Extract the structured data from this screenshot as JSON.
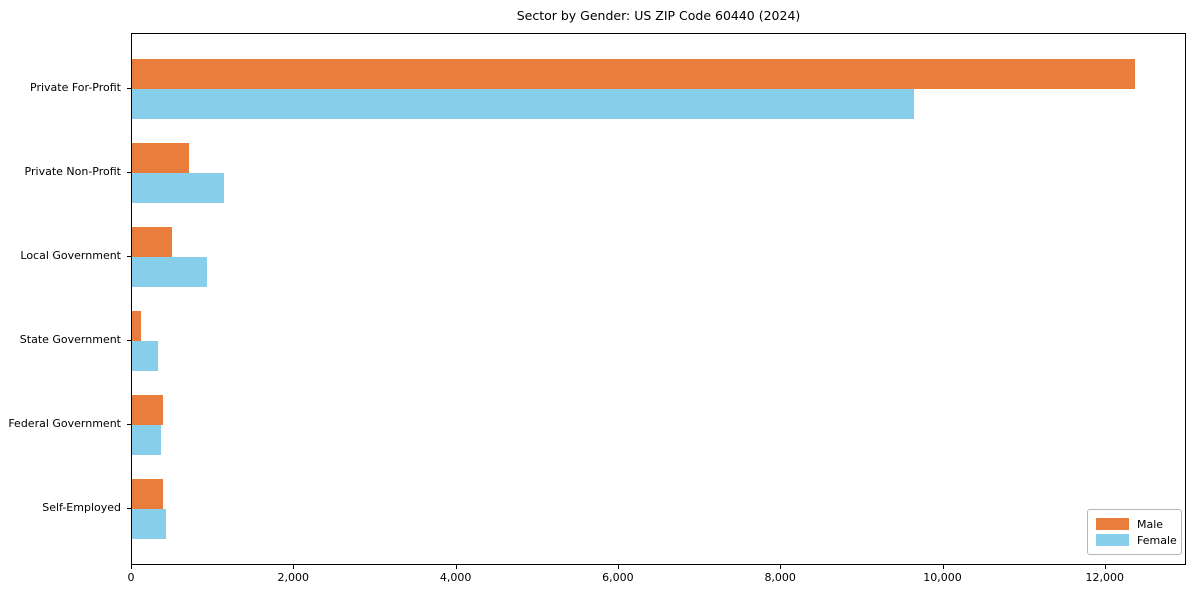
{
  "chart_data": {
    "type": "bar",
    "orientation": "horizontal",
    "title": "Sector by Gender: US ZIP Code 60440 (2024)",
    "categories": [
      "Private For-Profit",
      "Private Non-Profit",
      "Local Government",
      "State Government",
      "Federal Government",
      "Self-Employed"
    ],
    "series": [
      {
        "name": "Male",
        "color": "#E87D3C",
        "values": [
          12360,
          700,
          490,
          110,
          380,
          380
        ]
      },
      {
        "name": "Female",
        "color": "#87CEEB",
        "values": [
          9640,
          1130,
          920,
          320,
          360,
          415
        ]
      }
    ],
    "xlabel": "",
    "ylabel": "",
    "xlim": [
      0,
      13000
    ],
    "xticks": [
      0,
      2000,
      4000,
      6000,
      8000,
      10000,
      12000
    ],
    "xtick_labels": [
      "0",
      "2,000",
      "4,000",
      "6,000",
      "8,000",
      "10,000",
      "12,000"
    ],
    "grid": false,
    "legend": {
      "position": "lower right",
      "entries": [
        "Male",
        "Female"
      ]
    }
  }
}
